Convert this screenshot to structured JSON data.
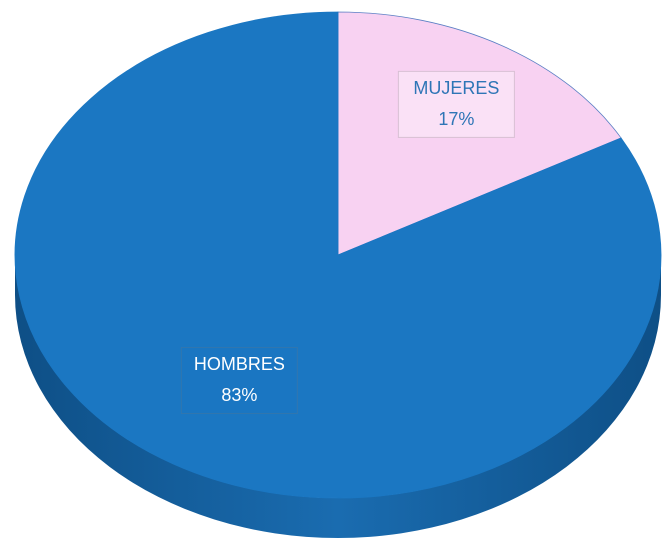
{
  "chart_data": {
    "type": "pie",
    "categories": [
      "MUJERES",
      "HOMBRES"
    ],
    "values": [
      17,
      83
    ],
    "value_labels": [
      "17%",
      "83%"
    ],
    "colors": [
      "#f8d2f2",
      "#1b77c2"
    ]
  }
}
